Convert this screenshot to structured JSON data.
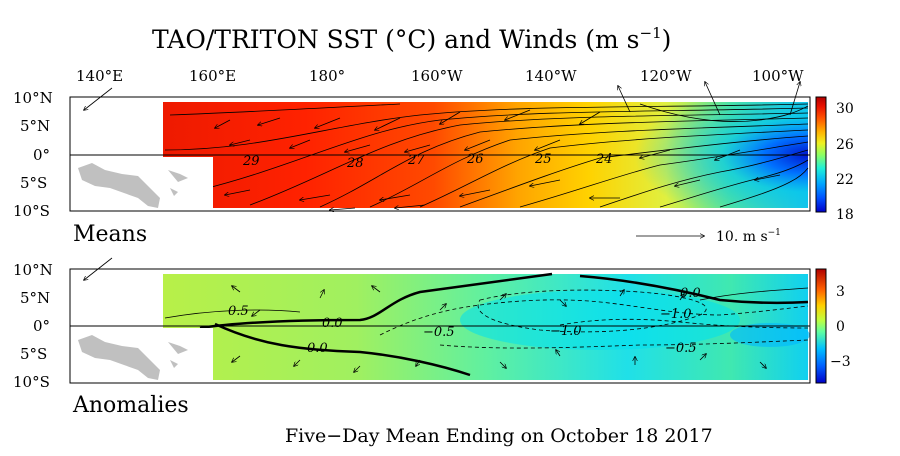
{
  "title": "TAO/TRITON SST (°C) and Winds (m s",
  "title_exp": "−1",
  "lon_labels": [
    "140°E",
    "160°E",
    "180°",
    "160°W",
    "140°W",
    "120°W",
    "100°W"
  ],
  "lat_labels": [
    "10°N",
    "5°N",
    "0°",
    "5°S",
    "10°S"
  ],
  "means_label": "Means",
  "anomalies_label": "Anomalies",
  "wind_scale_label": "10.  m s",
  "wind_scale_exp": "−1",
  "colorbar_top_ticks": [
    "30",
    "26",
    "22",
    "18"
  ],
  "colorbar_bottom_ticks": [
    "3",
    "0",
    "−3"
  ],
  "footer": "Five−Day Mean Ending on October 18 2017",
  "means_contours": [
    "29",
    "28",
    "27",
    "26",
    "25",
    "24"
  ],
  "anom_contours": [
    "0.5",
    "0.0",
    "0.0",
    "−0.5",
    "−1.0",
    "−1.0",
    "−0.5",
    "0.0"
  ],
  "chart_data": [
    {
      "type": "heatmap",
      "title": "TAO/TRITON SST (°C) and Winds (m s−1)",
      "panel": "Means",
      "x_ticks": [
        "140°E",
        "160°E",
        "180°",
        "160°W",
        "140°W",
        "120°W",
        "100°W"
      ],
      "y_ticks": [
        "10°N",
        "5°N",
        "0°",
        "5°S",
        "10°S"
      ],
      "colorbar_range": [
        18,
        31
      ],
      "colorbar_ticks": [
        30,
        26,
        22,
        18
      ],
      "contour_labels": [
        29,
        28,
        27,
        26,
        25,
        24
      ]
    },
    {
      "type": "heatmap",
      "panel": "Anomalies",
      "x_ticks": [
        "140°E",
        "160°E",
        "180°",
        "160°W",
        "140°W",
        "120°W",
        "100°W"
      ],
      "y_ticks": [
        "10°N",
        "5°N",
        "0°",
        "5°S",
        "10°S"
      ],
      "colorbar_range": [
        -4.5,
        4.5
      ],
      "colorbar_ticks": [
        3,
        0,
        -3
      ],
      "contour_labels": [
        0.5,
        0.0,
        0.0,
        -0.5,
        -1.0,
        -1.0,
        -0.5,
        0.0
      ]
    }
  ],
  "colors": {
    "cb_top": [
      "#0000c8",
      "#0040ff",
      "#0090ff",
      "#00d0ff",
      "#30f0c0",
      "#90ff60",
      "#d8ff30",
      "#ffe000",
      "#ffa000",
      "#ff5000",
      "#e81000",
      "#b00000"
    ],
    "cb_bottom": [
      "#0000c8",
      "#0050ff",
      "#00a0ff",
      "#00e0ff",
      "#60ffa0",
      "#b8ff40",
      "#ffe000",
      "#ffa000",
      "#ff5000",
      "#e81000",
      "#b00000"
    ],
    "land": "#c0c0c0"
  }
}
